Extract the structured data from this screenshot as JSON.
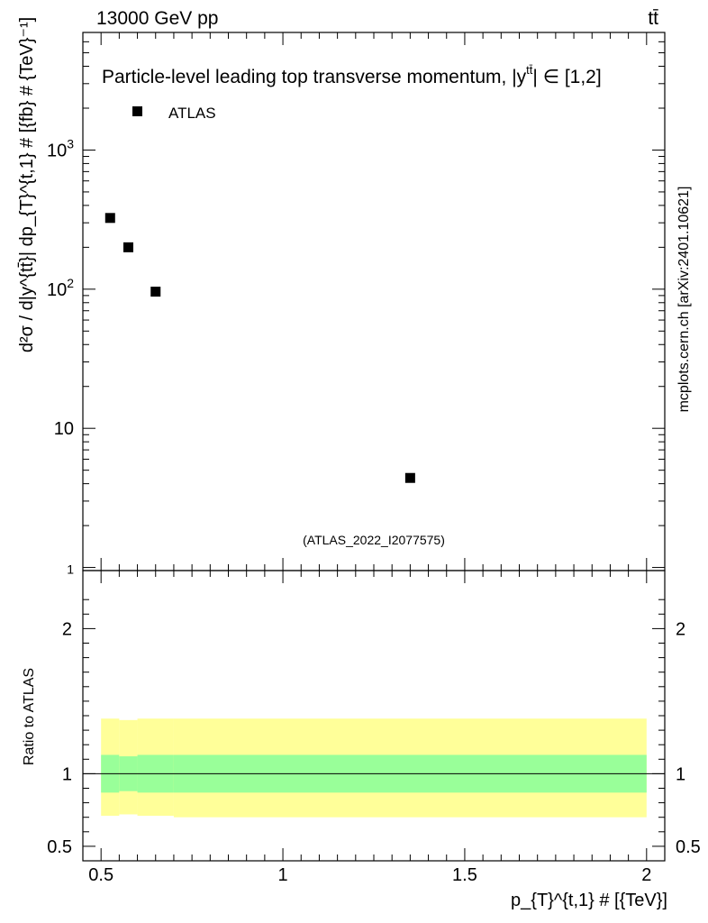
{
  "header": {
    "left": "13000 GeV pp",
    "right": "tt̄"
  },
  "watermark": "mcplots.cern.ch [arXiv:2401.10621]",
  "analysis_id": "(ATLAS_2022_I2077575)",
  "colors": {
    "data_marker": "#000000",
    "band_inner": "#99ff99",
    "band_outer": "#ffff99",
    "analysis_id_text": "#999999",
    "watermark_text": "#808080"
  },
  "chart_data": [
    {
      "type": "scatter",
      "title": "Particle-level leading top transverse momentum, |y^{tt̄}| ∈ [1,2]",
      "title_main": "Particle-level leading top transverse momentum, |",
      "title_y": "y",
      "title_sup": "tt̄",
      "title_tail": "| ∈ [1,2]",
      "ylabel": "d²σ / d|y^{tt̄}| dp_{T}^{t,1} # [{fb} # {TeV}⁻¹]",
      "yscale": "log",
      "xlim": [
        0.45,
        2.05
      ],
      "ylim": [
        0.95,
        7000
      ],
      "grid": false,
      "legend_position": "top-left",
      "yticks": [
        {
          "value": 1,
          "label": "1"
        },
        {
          "value": 10,
          "label": "10"
        },
        {
          "value": 100,
          "label": "10",
          "sup": "2"
        },
        {
          "value": 1000,
          "label": "10",
          "sup": "3"
        }
      ],
      "series": [
        {
          "name": "ATLAS",
          "marker": "square",
          "x": [
            0.525,
            0.575,
            0.65,
            1.35
          ],
          "y": [
            325,
            200,
            96,
            4.4
          ]
        }
      ]
    },
    {
      "type": "area",
      "ylabel": "Ratio to ATLAS",
      "xlabel": "p_{T}^{t,1} # [{TeV}]",
      "xlim": [
        0.45,
        2.05
      ],
      "ylim": [
        0.4,
        2.4
      ],
      "reference_line": 1,
      "xticks": [
        {
          "value": 0.5,
          "label": "0.5"
        },
        {
          "value": 1,
          "label": "1"
        },
        {
          "value": 1.5,
          "label": "1.5"
        },
        {
          "value": 2,
          "label": "2"
        }
      ],
      "yticks": [
        {
          "value": 0.5,
          "label": "0.5"
        },
        {
          "value": 1,
          "label": "1"
        },
        {
          "value": 2,
          "label": "2"
        }
      ],
      "bins": [
        0.5,
        0.55,
        0.6,
        0.7,
        2.0
      ],
      "inner_band": {
        "low": [
          0.87,
          0.88,
          0.87,
          0.87
        ],
        "high": [
          1.13,
          1.12,
          1.13,
          1.13
        ]
      },
      "outer_band": {
        "low": [
          0.71,
          0.72,
          0.71,
          0.7
        ],
        "high": [
          1.38,
          1.37,
          1.38,
          1.38
        ]
      }
    }
  ]
}
